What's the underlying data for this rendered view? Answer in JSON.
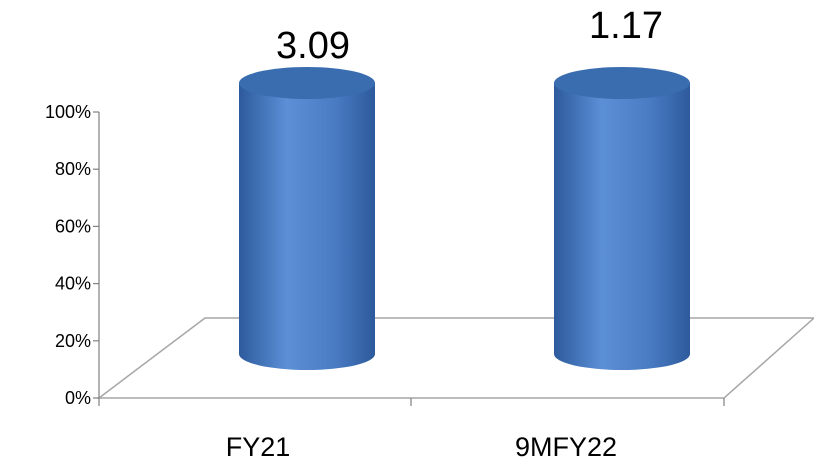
{
  "chart_data": {
    "type": "bar",
    "style": "3d-cylinder",
    "categories": [
      "FY21",
      "9MFY22"
    ],
    "values": [
      3.09,
      1.17
    ],
    "data_labels": [
      "3.09",
      "1.17"
    ],
    "yticks": [
      "0%",
      "20%",
      "40%",
      "60%",
      "80%",
      "100%"
    ],
    "ylim": [
      0,
      100
    ],
    "bar_fill_percent": [
      100,
      100
    ],
    "grid": false,
    "legend": "none",
    "title": "",
    "xlabel": "",
    "ylabel": "",
    "colors": {
      "bar_light": "#5b8fd6",
      "bar_mid": "#4a7cc4",
      "bar_dark": "#2d5a9c",
      "bar_top": "#3a6db0",
      "floor_line": "#a6a6a6",
      "axis_line": "#808080"
    }
  }
}
